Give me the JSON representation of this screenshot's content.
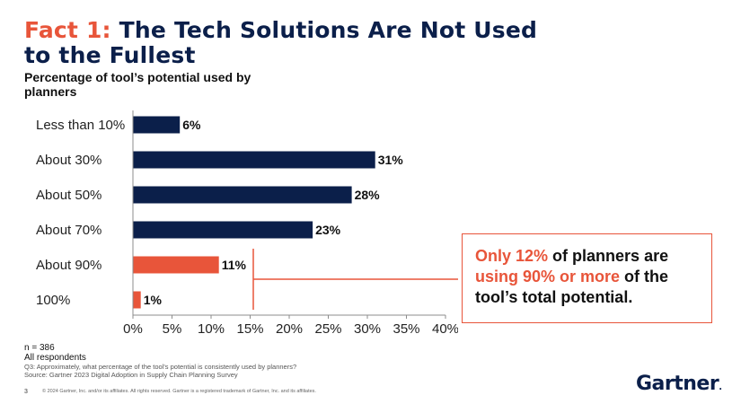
{
  "title": {
    "fact": "Fact 1:",
    "text": "The Tech Solutions Are Not Used",
    "line2": "to the Fullest"
  },
  "subtitle": "Percentage of tool’s potential used by planners",
  "colors": {
    "navy": "#0b1f4a",
    "orange": "#e8553a"
  },
  "chart_data": {
    "type": "bar",
    "orientation": "horizontal",
    "categories": [
      "Less than 10%",
      "About 30%",
      "About 50%",
      "About 70%",
      "About 90%",
      "100%"
    ],
    "values": [
      6,
      31,
      28,
      23,
      11,
      1
    ],
    "value_labels": [
      "6%",
      "31%",
      "28%",
      "23%",
      "11%",
      "1%"
    ],
    "highlight": [
      false,
      false,
      false,
      false,
      true,
      true
    ],
    "xlim": [
      0,
      40
    ],
    "xticks": [
      "0%",
      "5%",
      "10%",
      "15%",
      "20%",
      "25%",
      "30%",
      "35%",
      "40%"
    ],
    "grid": false
  },
  "callout": {
    "p1": "Only 12%",
    "p2": " of planners are ",
    "p3": "using 90% or more",
    "p4": " of the tool’s total potential."
  },
  "footer": {
    "n": "n = 386",
    "respondents": "All respondents",
    "question": "Q3: Approximately, what percentage of the tool's potential is consistently used by planners?",
    "source": "Source: Gartner 2023 Digital Adoption in Supply Chain Planning Survey",
    "page": "3",
    "copyright": "© 2024 Gartner, Inc. and/or its affiliates. All rights reserved. Gartner is a registered trademark of Gartner, Inc. and its affiliates."
  },
  "logo": "Gartner"
}
